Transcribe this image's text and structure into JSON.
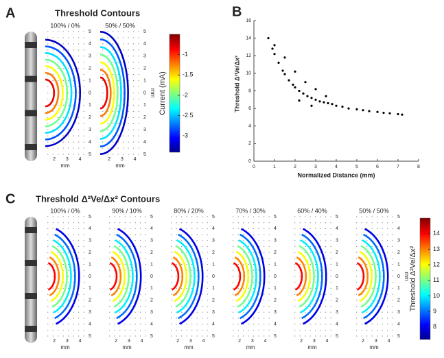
{
  "chart_data": [
    {
      "type": "contour",
      "panel_label": "A",
      "title": "Threshold Contours",
      "subplots": [
        "100% / 0%",
        "50% / 50%"
      ],
      "xlabel": "mm",
      "ylabel": "mm",
      "xlim": [
        1.3,
        4.4
      ],
      "xticks": [
        2,
        3,
        4
      ],
      "ylim": [
        -5,
        5
      ],
      "yticks": [
        5,
        4,
        3,
        2,
        1,
        0,
        {
          "value": -1,
          "label": "1"
        },
        {
          "value": -2,
          "label": "2"
        },
        {
          "value": -3,
          "label": "3"
        },
        {
          "value": -4,
          "label": "4"
        },
        {
          "value": -5,
          "label": "5"
        }
      ],
      "levels": [
        -3.2,
        -2.8,
        -2.4,
        -2.0,
        -1.6,
        -1.2,
        -0.8
      ],
      "colorbar_label": "Current (mA)",
      "clim": [
        -3.4,
        -0.5
      ],
      "cticks": [
        -1,
        -1.5,
        -2,
        -2.5,
        -3
      ]
    },
    {
      "type": "scatter",
      "panel_label": "B",
      "ylabel": "Threshold Δ²Ve/Δx²",
      "xlabel": "Normalized Distance (mm)",
      "x": [
        0.7,
        0.9,
        1.0,
        1.2,
        1.4,
        1.5,
        1.7,
        1.9,
        2.0,
        2.2,
        2.4,
        2.6,
        2.8,
        3.0,
        3.2,
        3.4,
        3.6,
        3.8,
        4.0,
        4.3,
        4.6,
        5.0,
        5.3,
        5.6,
        6.0,
        6.3,
        6.6,
        7.0,
        7.2,
        1.0,
        1.5,
        2.0,
        2.5,
        3.0,
        3.5,
        2.2,
        2.8
      ],
      "values": [
        14.0,
        12.8,
        12.2,
        11.2,
        10.3,
        9.9,
        9.2,
        8.7,
        8.4,
        8.0,
        7.7,
        7.4,
        7.2,
        7.0,
        6.8,
        6.7,
        6.6,
        6.5,
        6.3,
        6.2,
        6.0,
        5.9,
        5.8,
        5.7,
        5.6,
        5.5,
        5.45,
        5.35,
        5.3,
        13.2,
        11.8,
        10.2,
        9.0,
        8.2,
        7.4,
        6.9,
        6.3
      ],
      "color": "#000000",
      "xlim": [
        0,
        8
      ],
      "xticks": [
        0,
        1,
        2,
        3,
        4,
        5,
        6,
        7,
        8
      ],
      "ylim": [
        0,
        16
      ],
      "yticks": [
        0,
        2,
        4,
        6,
        8,
        10,
        12,
        14,
        16
      ]
    },
    {
      "type": "contour",
      "panel_label": "C",
      "title": "Threshold Δ²Ve/Δx² Contours",
      "subplots": [
        "100% / 0%",
        "90% / 10%",
        "80% / 20%",
        "70% / 30%",
        "60% / 40%",
        "50% / 50%"
      ],
      "xlabel": "mm",
      "ylabel": "mm",
      "xlim": [
        1.3,
        4.4
      ],
      "xticks": [
        2,
        3,
        4
      ],
      "ylim": [
        -5,
        5
      ],
      "yticks": [
        5,
        4,
        3,
        2,
        1,
        0,
        {
          "value": -1,
          "label": "1"
        },
        {
          "value": -2,
          "label": "2"
        },
        {
          "value": -3,
          "label": "3"
        },
        {
          "value": -4,
          "label": "4"
        },
        {
          "value": -5,
          "label": "5"
        }
      ],
      "levels": [
        8,
        9,
        10,
        11,
        12,
        13,
        14
      ],
      "colorbar_label": "Threshold Δ²Ve/Δx²",
      "clim": [
        7.2,
        15
      ],
      "cticks": [
        8,
        9,
        10,
        11,
        12,
        13,
        14
      ]
    }
  ]
}
